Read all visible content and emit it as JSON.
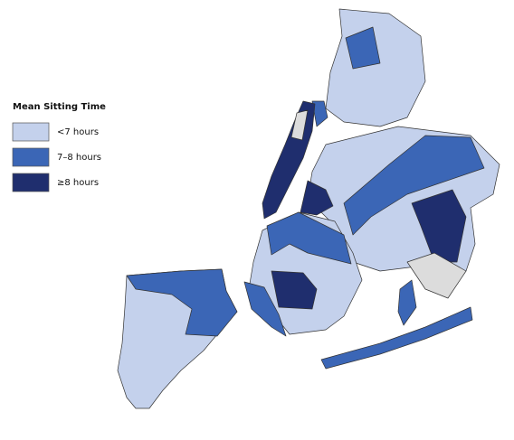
{
  "legend": {
    "title": "Mean Sitting Time",
    "items": [
      {
        "label": "<7 hours",
        "color": "#c4d1ec"
      },
      {
        "label": "7–8 hours",
        "color": "#3b66b6"
      },
      {
        "label": "≥8 hours",
        "color": "#1f2e6e"
      }
    ]
  }
}
